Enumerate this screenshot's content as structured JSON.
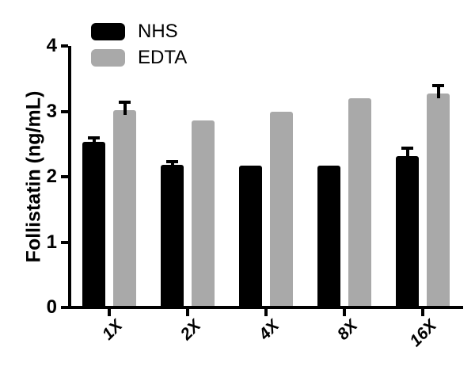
{
  "chart_data": {
    "type": "bar",
    "title": "",
    "xlabel": "",
    "ylabel": "Follistatin (ng/mL)",
    "ylim": [
      0,
      4
    ],
    "yticks": [
      0,
      1,
      2,
      3,
      4
    ],
    "categories": [
      "1X",
      "2X",
      "4X",
      "8X",
      "16X"
    ],
    "series": [
      {
        "name": "NHS",
        "color": "#000000",
        "values": [
          2.53,
          2.18,
          2.17,
          2.17,
          2.32
        ],
        "errors_plus": [
          0.06,
          0.05,
          0,
          0,
          0.12
        ]
      },
      {
        "name": "EDTA",
        "color": "#a9a9a9",
        "values": [
          3.02,
          2.86,
          3.0,
          3.2,
          3.27
        ],
        "errors_plus": [
          0.12,
          0,
          0,
          0,
          0.13
        ]
      }
    ],
    "legend_position": "top-left",
    "grid": false,
    "error_bars": "upper-only",
    "axis_color": "#000000",
    "background_color": "#ffffff"
  }
}
